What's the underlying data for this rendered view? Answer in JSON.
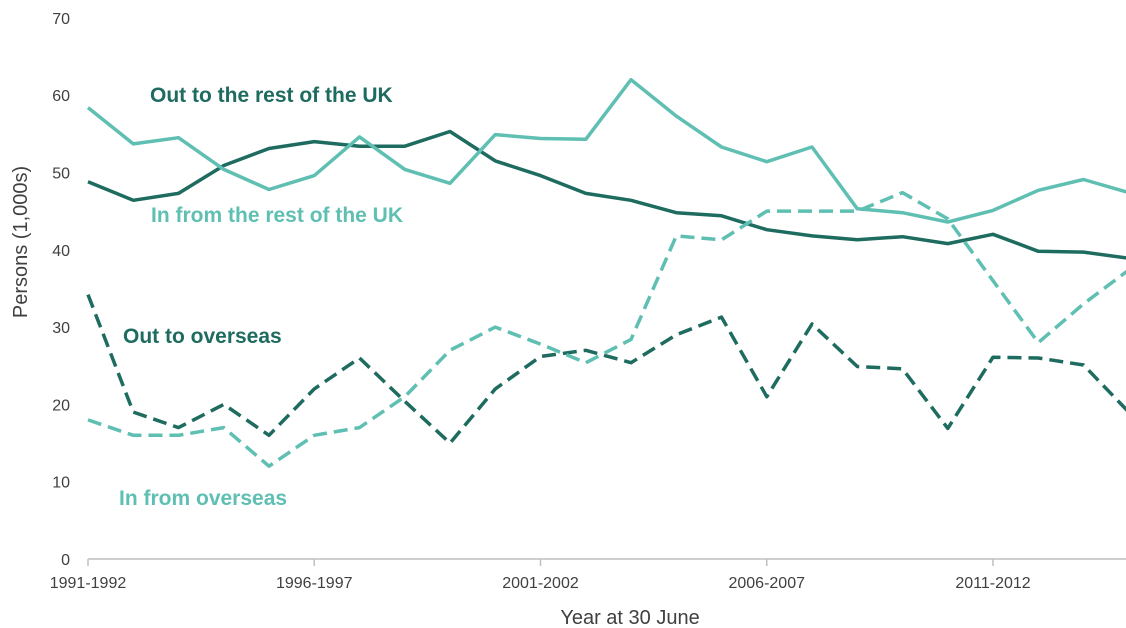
{
  "chart_data": {
    "type": "line",
    "xlabel": "Year at 30 June",
    "ylabel": "Persons (1,000s)",
    "ylim": [
      0,
      70
    ],
    "yticks": [
      0,
      10,
      20,
      30,
      40,
      50,
      60,
      70
    ],
    "x": [
      "1991-1992",
      "1992-1993",
      "1993-1994",
      "1994-1995",
      "1995-1996",
      "1996-1997",
      "1997-1998",
      "1998-1999",
      "1999-2000",
      "2000-2001",
      "2001-2002",
      "2002-2003",
      "2003-2004",
      "2004-2005",
      "2005-2006",
      "2006-2007",
      "2007-2008",
      "2008-2009",
      "2009-2010",
      "2010-2011",
      "2011-2012",
      "2012-2013",
      "2013-2014",
      "2014-2015"
    ],
    "xtick_labels": [
      "1991-1992",
      "1996-1997",
      "2001-2002",
      "2006-2007",
      "2011-2012"
    ],
    "grid": false,
    "legend": "inline labels",
    "series": [
      {
        "name": "Out to the rest of the UK",
        "color": "#1e6b5f",
        "style": "solid",
        "values": [
          48.8,
          46.4,
          47.3,
          50.9,
          53.1,
          54.0,
          53.4,
          53.4,
          55.3,
          51.5,
          49.6,
          47.3,
          46.4,
          44.8,
          44.4,
          42.6,
          41.8,
          41.3,
          41.7,
          40.8,
          42.0,
          39.8,
          39.7,
          38.9
        ]
      },
      {
        "name": "In from the rest of the UK",
        "color": "#5ebfb2",
        "style": "solid",
        "values": [
          58.4,
          53.7,
          54.5,
          50.4,
          47.8,
          49.6,
          54.6,
          50.4,
          48.6,
          54.9,
          54.4,
          54.3,
          62.0,
          57.3,
          53.3,
          51.4,
          53.3,
          45.3,
          44.8,
          43.6,
          45.1,
          47.7,
          49.1,
          47.4
        ]
      },
      {
        "name": "Out to overseas",
        "color": "#1e6b5f",
        "style": "dashed",
        "values": [
          34.2,
          19.0,
          17.0,
          20.0,
          16.0,
          22.0,
          26.0,
          20.4,
          15.0,
          22.0,
          26.2,
          27.0,
          25.4,
          29.0,
          31.3,
          21.0,
          30.4,
          24.9,
          24.6,
          16.9,
          26.1,
          26.0,
          25.1,
          19.0
        ]
      },
      {
        "name": "In from overseas",
        "color": "#5ebfb2",
        "style": "dashed",
        "values": [
          18.0,
          16.0,
          16.0,
          17.0,
          12.0,
          16.0,
          17.0,
          21.0,
          27.0,
          30.0,
          27.8,
          25.4,
          28.4,
          41.8,
          41.3,
          45.0,
          45.0,
          45.0,
          47.4,
          44.0,
          36.0,
          28.0,
          33.0,
          37.4
        ]
      }
    ]
  }
}
